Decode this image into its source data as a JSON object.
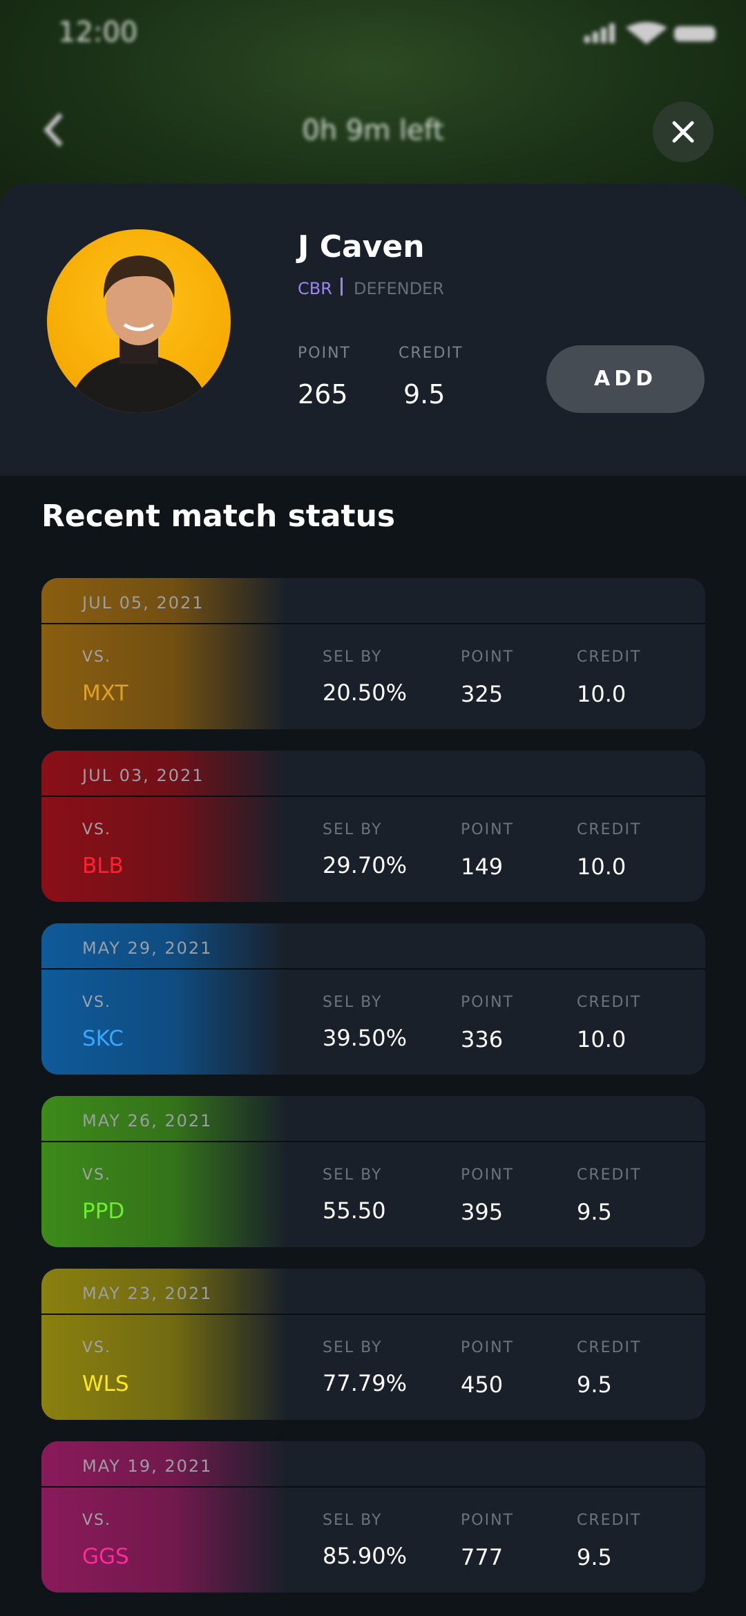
{
  "status_bar": {
    "time": "12:00"
  },
  "header": {
    "title": "0h 9m left"
  },
  "player": {
    "name": "J Caven",
    "team": "CBR",
    "role": "DEFENDER",
    "point_label": "POINT",
    "credit_label": "CREDIT",
    "point": "265",
    "credit": "9.5",
    "button": "ADD"
  },
  "section_title": "Recent match status",
  "labels": {
    "vs": "VS.",
    "sel_by": "SEL BY",
    "point": "POINT",
    "credit": "CREDIT"
  },
  "matches": [
    {
      "date": "JUL 05, 2021",
      "opponent": "MXT",
      "sel_by": "20.50%",
      "point": "325",
      "credit": "10.0"
    },
    {
      "date": "JUL 03, 2021",
      "opponent": "BLB",
      "sel_by": "29.70%",
      "point": "149",
      "credit": "10.0"
    },
    {
      "date": "MAY 29, 2021",
      "opponent": "SKC",
      "sel_by": "39.50%",
      "point": "336",
      "credit": "10.0"
    },
    {
      "date": "MAY 26, 2021",
      "opponent": "PPD",
      "sel_by": "55.50",
      "point": "395",
      "credit": "9.5"
    },
    {
      "date": "MAY 23, 2021",
      "opponent": "WLS",
      "sel_by": "77.79%",
      "point": "450",
      "credit": "9.5"
    },
    {
      "date": "MAY 19, 2021",
      "opponent": "GGS",
      "sel_by": "85.90%",
      "point": "777",
      "credit": "9.5"
    }
  ]
}
